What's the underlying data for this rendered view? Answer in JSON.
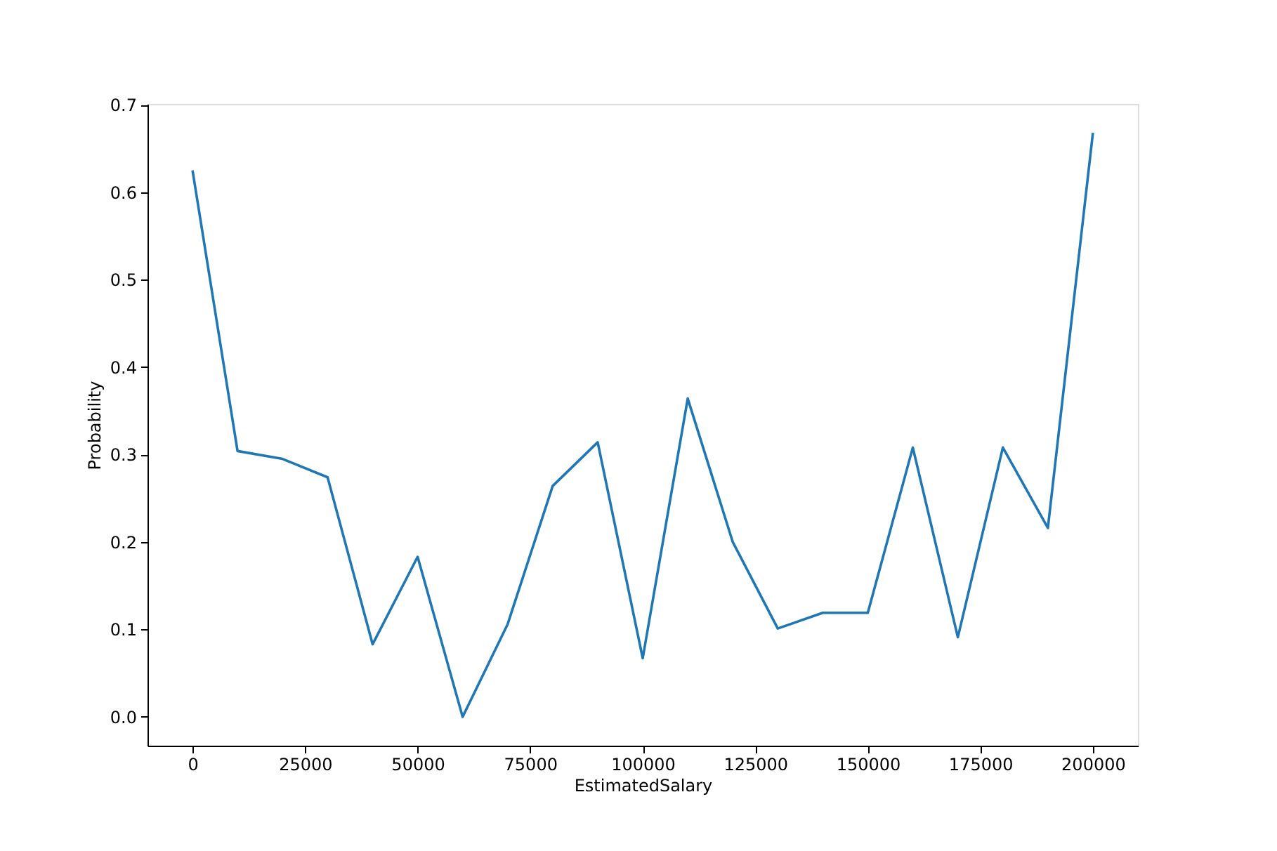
{
  "chart_data": {
    "type": "line",
    "xlabel": "EstimatedSalary",
    "ylabel": "Probability",
    "x": [
      0,
      10000,
      20000,
      30000,
      40000,
      50000,
      60000,
      70000,
      80000,
      90000,
      100000,
      110000,
      120000,
      130000,
      140000,
      150000,
      160000,
      170000,
      180000,
      190000,
      200000
    ],
    "series": [
      {
        "color": "#1f77b4",
        "values": [
          0.625,
          0.304,
          0.295,
          0.274,
          0.083,
          0.183,
          0.0,
          0.106,
          0.264,
          0.314,
          0.067,
          0.364,
          0.2,
          0.101,
          0.119,
          0.119,
          0.308,
          0.091,
          0.308,
          0.216,
          0.668
        ]
      }
    ],
    "xlim": [
      -10000,
      210000
    ],
    "ylim": [
      -0.033,
      0.701
    ],
    "xticks": [
      0,
      25000,
      50000,
      75000,
      100000,
      125000,
      150000,
      175000,
      200000
    ],
    "yticks": [
      {
        "value": 0.0,
        "label": "0.0"
      },
      {
        "value": 0.1,
        "label": "0.1"
      },
      {
        "value": 0.2,
        "label": "0.2"
      },
      {
        "value": 0.3,
        "label": "0.3"
      },
      {
        "value": 0.4,
        "label": "0.4"
      },
      {
        "value": 0.5,
        "label": "0.5"
      },
      {
        "value": 0.6,
        "label": "0.6"
      },
      {
        "value": 0.7,
        "label": "0.7"
      }
    ],
    "grid": false,
    "legend": false,
    "marker": "none",
    "line_style": "solid"
  }
}
